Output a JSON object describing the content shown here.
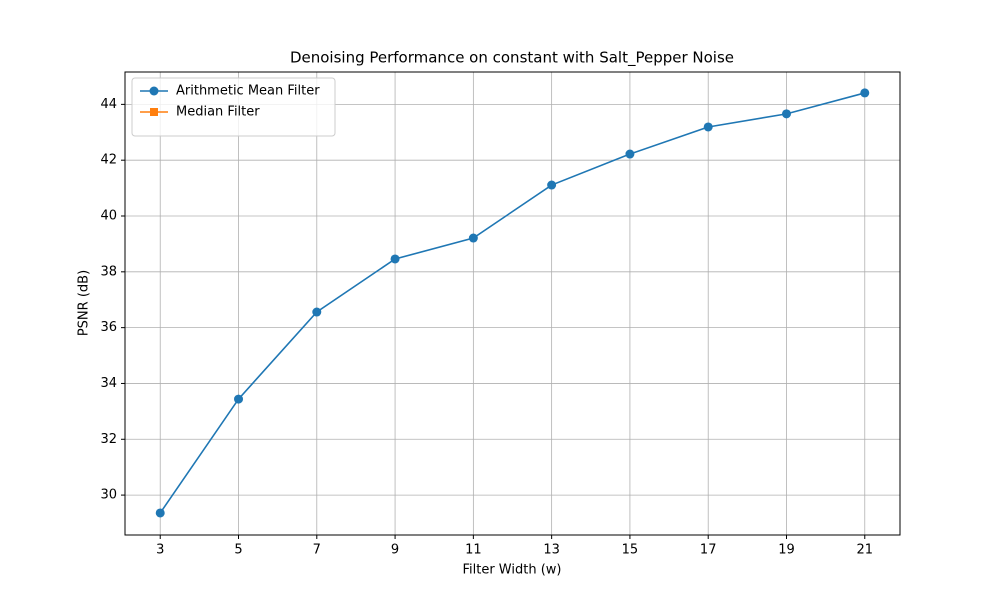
{
  "chart_data": {
    "type": "line",
    "title": "Denoising Performance on constant with Salt_Pepper Noise",
    "xlabel": "Filter Width (w)",
    "ylabel": "PSNR (dB)",
    "x": [
      3,
      5,
      7,
      9,
      11,
      13,
      15,
      17,
      19,
      21
    ],
    "series": [
      {
        "name": "Arithmetic Mean Filter",
        "color": "#1f77b4",
        "marker": "circle",
        "values": [
          29.36,
          33.44,
          36.56,
          38.46,
          39.21,
          41.11,
          42.22,
          43.19,
          43.66,
          44.41
        ]
      },
      {
        "name": "Median Filter",
        "color": "#ff7f0e",
        "marker": "square",
        "values": [
          null,
          null,
          null,
          null,
          null,
          null,
          null,
          null,
          null,
          null
        ]
      }
    ],
    "xlim": [
      2.1,
      21.9
    ],
    "xticks": [
      3,
      5,
      7,
      9,
      11,
      13,
      15,
      17,
      19,
      21
    ],
    "ylim": [
      28.57,
      45.16
    ],
    "yticks": [
      30,
      32,
      34,
      36,
      38,
      40,
      42,
      44
    ],
    "grid": true,
    "legend": "upper left"
  }
}
